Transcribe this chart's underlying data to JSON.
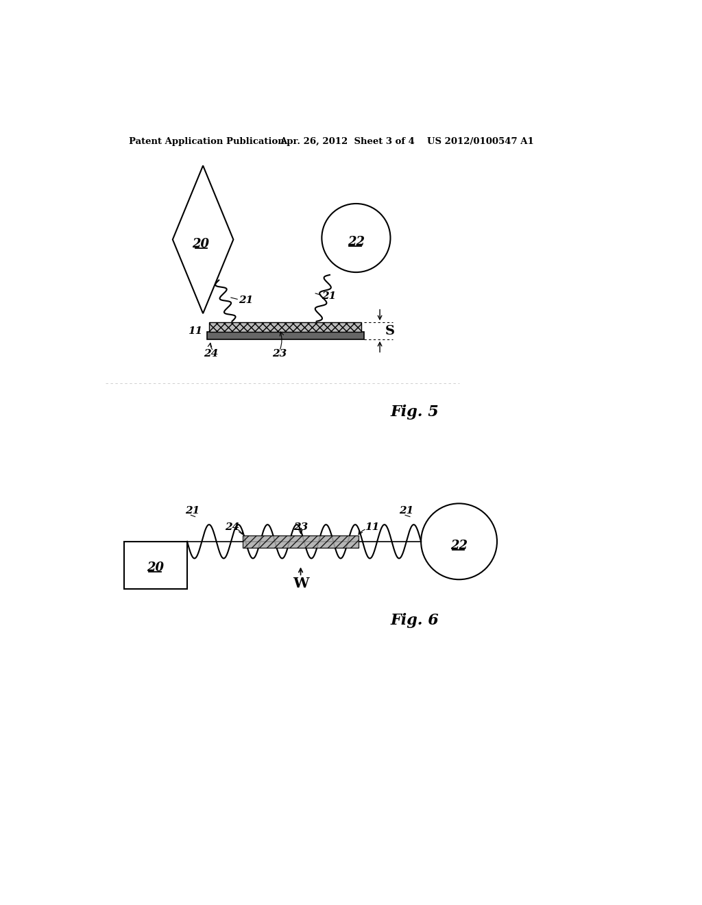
{
  "bg_color": "#ffffff",
  "header_left": "Patent Application Publication",
  "header_mid": "Apr. 26, 2012  Sheet 3 of 4",
  "header_right": "US 2012/0100547 A1",
  "fig5_label": "Fig. 5",
  "fig6_label": "Fig. 6",
  "label_20": "20",
  "label_22": "22",
  "label_21": "21",
  "label_23": "23",
  "label_24": "24",
  "label_11": "11",
  "label_S": "S",
  "label_W": "W"
}
